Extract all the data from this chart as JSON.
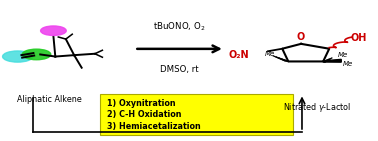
{
  "fig_width": 3.78,
  "fig_height": 1.41,
  "dpi": 100,
  "bg_color": "#ffffff",
  "reagents_text": "tBuONO, O$_2$",
  "reagents_line2": "DMSO, rt",
  "label_left": "Aliphatic Alkene",
  "label_right": "Nitrated $\\gamma$-Lactol",
  "box_text_lines": [
    "1) Oxynitration",
    "2) C-H Oxidation",
    "3) Hemiacetalization"
  ],
  "box_color": "#ffff00",
  "red_color": "#cc0000",
  "black": "#000000",
  "green_color": "#22cc22",
  "cyan_color": "#44dddd",
  "magenta_color": "#ee44ee"
}
